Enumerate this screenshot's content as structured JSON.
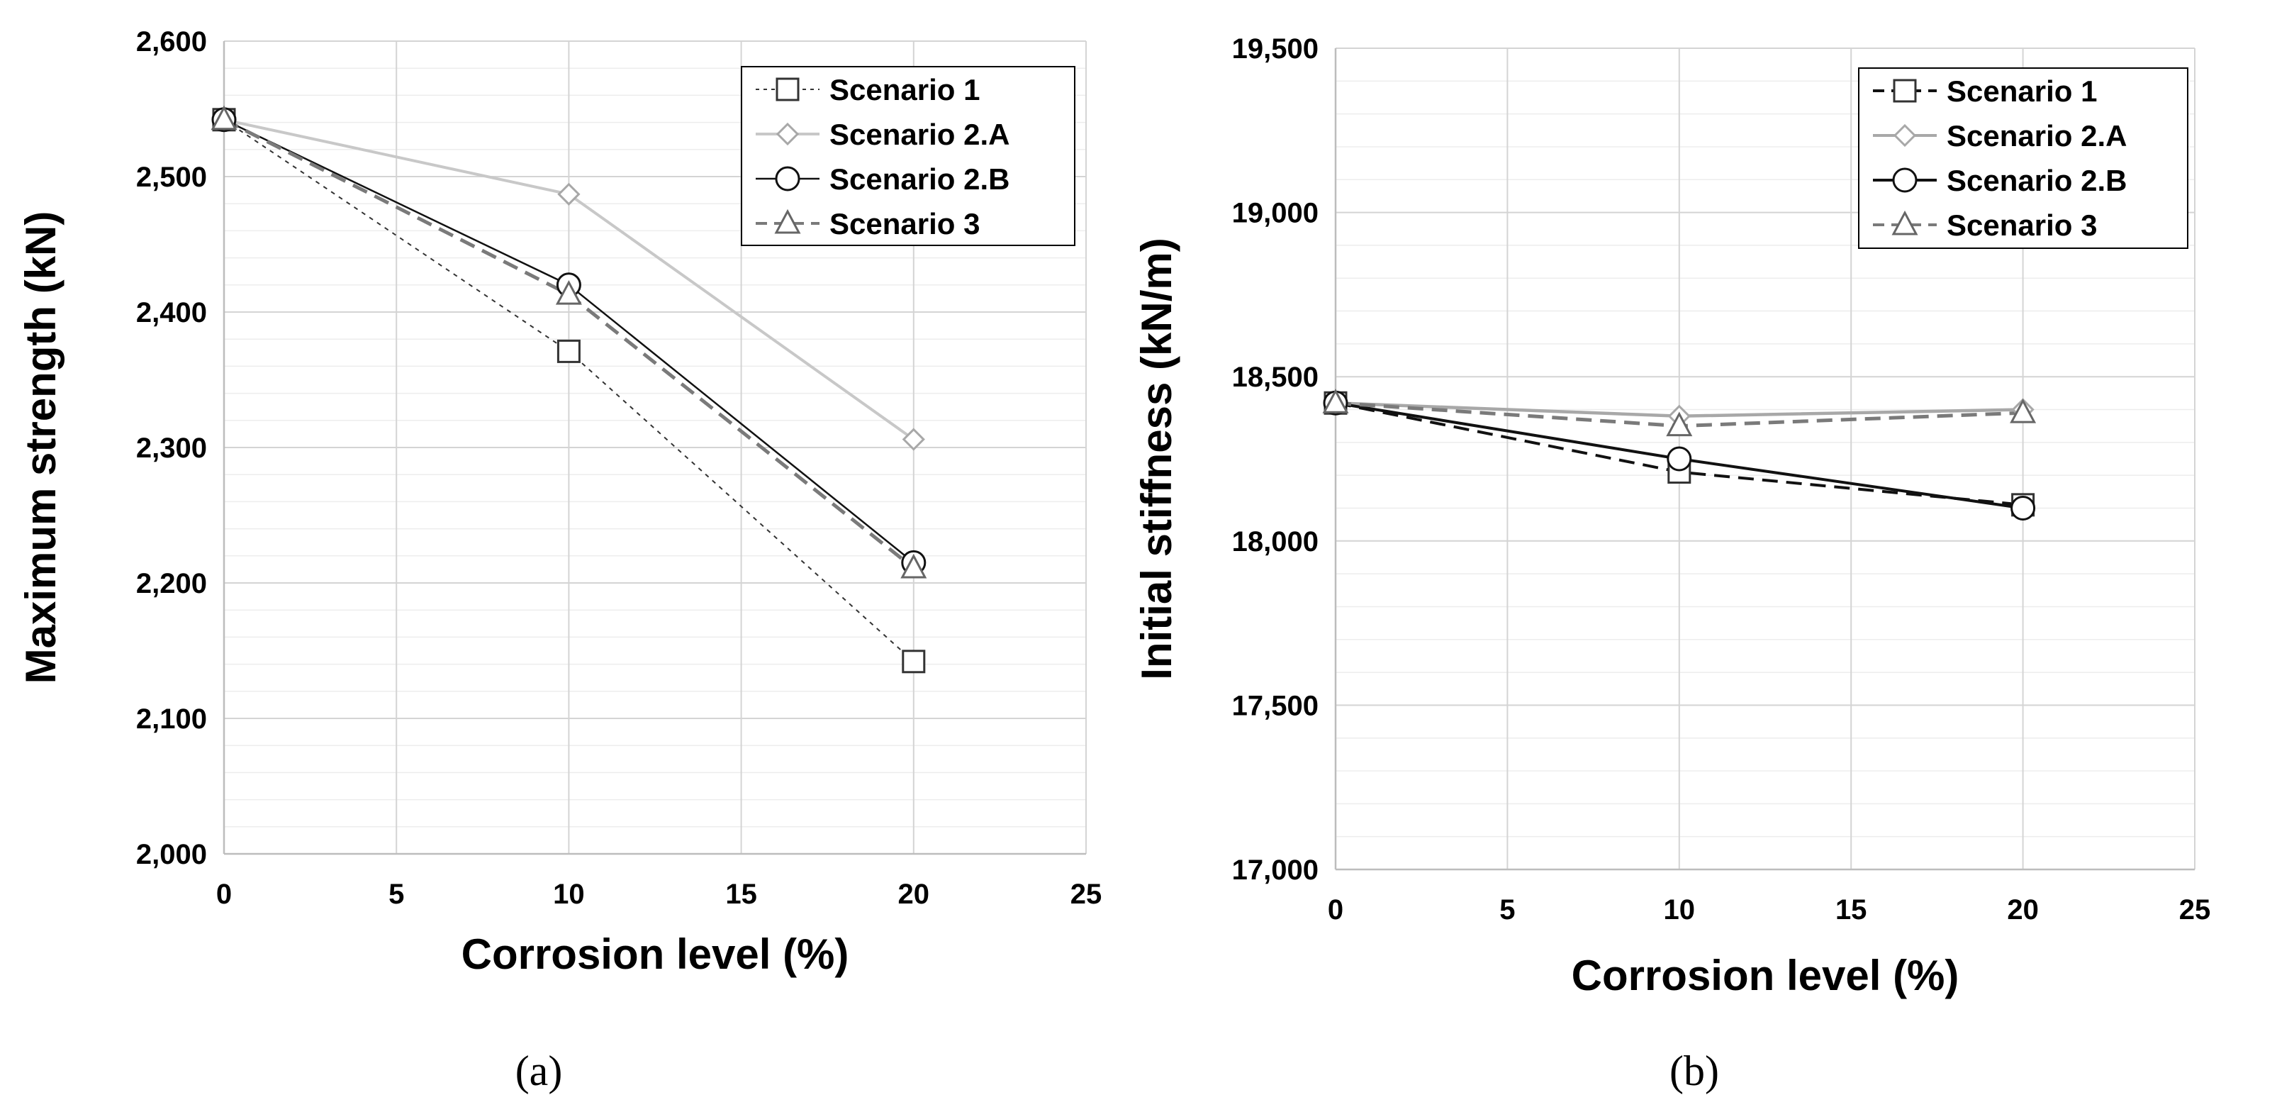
{
  "chart_data": [
    {
      "type": "line",
      "panel": "a",
      "caption": "(a)",
      "xlabel": "Corrosion level (%)",
      "ylabel": "Maximum strength (kN)",
      "xlim": [
        0,
        25
      ],
      "ylim": [
        2000,
        2600
      ],
      "xticks": [
        0,
        5,
        10,
        15,
        20,
        25
      ],
      "xtick_labels": [
        "0",
        "5",
        "10",
        "15",
        "20",
        "25"
      ],
      "yticks": [
        2000,
        2100,
        2200,
        2300,
        2400,
        2500,
        2600
      ],
      "ytick_labels": [
        "2,000",
        "2,100",
        "2,200",
        "2,300",
        "2,400",
        "2,500",
        "2,600"
      ],
      "y_minor_step": 20,
      "grid": true,
      "legend_position": "top-right",
      "x": [
        0,
        10,
        20
      ],
      "series": [
        {
          "name": "Scenario 1",
          "values": [
            2542,
            2371,
            2142
          ],
          "marker": "square",
          "line": "dotted",
          "color": "#333333",
          "width": 2
        },
        {
          "name": "Scenario 2.A",
          "values": [
            2542,
            2487,
            2306
          ],
          "marker": "diamond",
          "line": "solid",
          "color": "#c8c8c8",
          "width": 4
        },
        {
          "name": "Scenario 2.B",
          "values": [
            2542,
            2420,
            2215
          ],
          "marker": "circle",
          "line": "solid",
          "color": "#111111",
          "width": 2.5
        },
        {
          "name": "Scenario 3",
          "values": [
            2542,
            2413,
            2211
          ],
          "marker": "triangle",
          "line": "dashed",
          "color": "#7a7a7a",
          "width": 5
        }
      ]
    },
    {
      "type": "line",
      "panel": "b",
      "caption": "(b)",
      "xlabel": "Corrosion level (%)",
      "ylabel": "Initial stiffness (kN/m)",
      "xlim": [
        0,
        25
      ],
      "ylim": [
        17000,
        19500
      ],
      "xticks": [
        0,
        5,
        10,
        15,
        20,
        25
      ],
      "xtick_labels": [
        "0",
        "5",
        "10",
        "15",
        "20",
        "25"
      ],
      "yticks": [
        17000,
        17500,
        18000,
        18500,
        19000,
        19500
      ],
      "ytick_labels": [
        "17,000",
        "17,500",
        "18,000",
        "18,500",
        "19,000",
        "19,500"
      ],
      "y_minor_step": 100,
      "grid": true,
      "legend_position": "top-right",
      "x": [
        0,
        10,
        20
      ],
      "series": [
        {
          "name": "Scenario 1",
          "values": [
            18420,
            18210,
            18110
          ],
          "marker": "square",
          "line": "dashed",
          "color": "#111111",
          "width": 4
        },
        {
          "name": "Scenario 2.A",
          "values": [
            18420,
            18380,
            18400
          ],
          "marker": "diamond",
          "line": "solid",
          "color": "#a8a8a8",
          "width": 4.5
        },
        {
          "name": "Scenario 2.B",
          "values": [
            18420,
            18250,
            18100
          ],
          "marker": "circle",
          "line": "solid",
          "color": "#111111",
          "width": 4
        },
        {
          "name": "Scenario 3",
          "values": [
            18420,
            18350,
            18390
          ],
          "marker": "triangle",
          "line": "dashed",
          "color": "#7a7a7a",
          "width": 5
        }
      ]
    }
  ]
}
